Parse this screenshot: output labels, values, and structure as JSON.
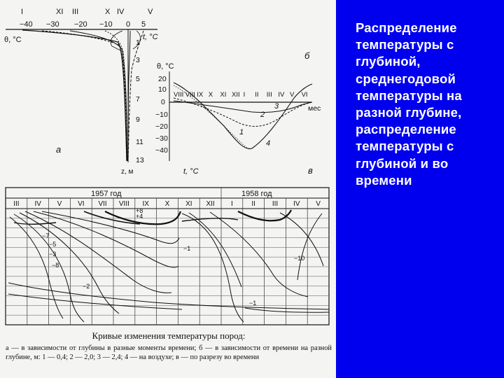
{
  "panel": {
    "title": "Распределение температуры с глубиной, среднегодовой температуры  на разной глубине, распределение температуры с глубиной и во времени",
    "background": "#0000ee",
    "text_color": "#ffffff"
  },
  "figure": {
    "a": {
      "label": "а",
      "month_labels": [
        "I",
        "XI",
        "III",
        "X",
        "IV",
        "V"
      ],
      "temp_ticks": [
        "−40",
        "−30",
        "−20",
        "−10",
        "0",
        "5"
      ],
      "temp_axis_label": "θ, °С",
      "t_label": "t, °С",
      "depth_ticks": [
        "1",
        "3",
        "5",
        "7",
        "9",
        "11",
        "13"
      ],
      "depth_axis_label": "z, м"
    },
    "b": {
      "label": "б"
    },
    "v": {
      "label": "в",
      "y_axis_label": "θ, °С",
      "y_ticks": [
        "20",
        "10",
        "0",
        "−10",
        "−20",
        "−30",
        "−40"
      ],
      "month_row": [
        "VIII",
        "VIII",
        "IX",
        "X",
        "XI",
        "XII",
        "I",
        "II",
        "III",
        "IV",
        "V",
        "VI"
      ],
      "x_axis_label": "мес",
      "t_label": "t, °С",
      "curve_labels": [
        "1",
        "2",
        "3",
        "4"
      ]
    },
    "isotherm": {
      "year1": "1957 год",
      "year2": "1958 год",
      "months": [
        "III",
        "IV",
        "V",
        "VI",
        "VII",
        "VIII",
        "IX",
        "X",
        "XI",
        "XII",
        "I",
        "II",
        "III",
        "IV",
        "V"
      ],
      "contour_labels": [
        "−1",
        "−2",
        "−3",
        "−5",
        "−7",
        "−8",
        "+4",
        "+8",
        "−10",
        "−1"
      ]
    },
    "caption": {
      "title": "Кривые изменения температуры пород:",
      "body": "а — в зависимости от глубины в разные моменты времени; б — в зависимости от времени на разной глубине, м: 1 — 0,4; 2 — 2,0; 3 — 2,4; 4 — на воздухе; в — по разрезу во времени"
    }
  }
}
